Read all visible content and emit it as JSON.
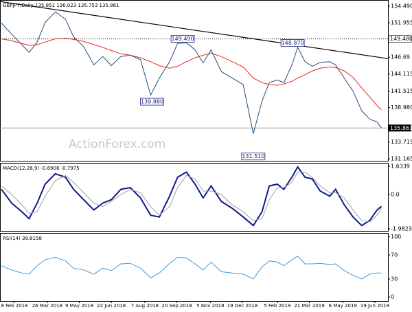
{
  "chart_data": [
    {
      "type": "line",
      "title": "GBPJPY,Daily  135.851 136.023 135.753 135.861",
      "watermark": "ActionForex.com",
      "x": [
        "2018-01-22",
        "2018-02-05",
        "2018-02-19",
        "2018-03-01",
        "2018-03-12",
        "2018-03-23",
        "2018-04-06",
        "2018-04-20",
        "2018-05-01",
        "2018-05-15",
        "2018-05-29",
        "2018-06-10",
        "2018-06-22",
        "2018-07-05",
        "2018-07-18",
        "2018-08-01",
        "2018-08-15",
        "2018-08-27",
        "2018-09-10",
        "2018-09-21",
        "2018-10-03",
        "2018-10-15",
        "2018-10-26",
        "2018-11-06",
        "2018-11-20",
        "2018-12-05",
        "2018-12-20",
        "2019-01-03",
        "2019-01-15",
        "2019-01-25",
        "2019-02-05",
        "2019-02-14",
        "2019-02-25",
        "2019-03-05",
        "2019-03-15",
        "2019-03-25",
        "2019-04-05",
        "2019-04-18",
        "2019-04-26",
        "2019-05-08",
        "2019-05-20",
        "2019-06-01",
        "2019-06-12",
        "2019-06-22",
        "2019-06-28"
      ],
      "series": [
        {
          "name": "GBPJPY",
          "color": "#1f4e79",
          "values": [
            151.9,
            150.2,
            148.6,
            147.4,
            149.0,
            152.0,
            153.6,
            152.5,
            149.8,
            148.3,
            145.5,
            146.8,
            145.4,
            146.8,
            147.0,
            146.3,
            140.9,
            143.5,
            146.0,
            148.8,
            148.9,
            147.8,
            145.8,
            147.8,
            144.5,
            143.5,
            142.5,
            135.0,
            140.0,
            142.8,
            143.2,
            142.8,
            145.5,
            148.2,
            146.0,
            145.3,
            145.9,
            146.0,
            145.5,
            143.5,
            141.5,
            138.5,
            137.2,
            136.8,
            135.86
          ]
        },
        {
          "name": "MA",
          "color": "#e8231c",
          "values": [
            149.5,
            149.2,
            148.8,
            148.5,
            148.6,
            149.0,
            149.5,
            149.6,
            149.4,
            149.1,
            148.6,
            148.2,
            147.7,
            147.2,
            147.0,
            146.6,
            146.0,
            145.4,
            145.0,
            145.3,
            146.0,
            146.6,
            147.0,
            147.3,
            146.8,
            146.0,
            145.2,
            143.5,
            142.8,
            142.5,
            142.4,
            142.6,
            143.0,
            143.5,
            144.0,
            144.6,
            145.0,
            145.2,
            145.1,
            144.6,
            143.6,
            142.0,
            140.6,
            139.3,
            138.6
          ]
        }
      ],
      "trendline": {
        "x": [
          "2018-01-20",
          "2019-07-07"
        ],
        "values": [
          155.2,
          146.47
        ],
        "color": "#000000"
      },
      "level": {
        "value": 149.48,
        "label": "149.480"
      },
      "last": {
        "value": 135.861,
        "label": "135.861"
      },
      "annotations": [
        {
          "text": "139.880",
          "x": "2018-08-17",
          "value": 139.88
        },
        {
          "text": "149.490",
          "x": "2018-09-28",
          "value": 149.49
        },
        {
          "text": "148.870",
          "x": "2019-02-26",
          "value": 148.87
        },
        {
          "text": "131.510",
          "x": "2019-01-03",
          "value": 131.51
        }
      ],
      "xlim": [
        "2018-01-20",
        "2019-07-07"
      ],
      "ylim": [
        130.85,
        155.43
      ],
      "yticks": [
        {
          "value": 154.49,
          "label": "154.490"
        },
        151.955,
        146.69,
        144.115,
        141.515,
        {
          "value": 138.98,
          "label": "138.980"
        },
        133.715,
        131.165
      ]
    },
    {
      "type": "line",
      "title": "MACD(12,26,9) -0.6908 -0.7975",
      "x": [
        "2018-01-22",
        "2018-02-05",
        "2018-02-19",
        "2018-03-01",
        "2018-03-12",
        "2018-03-23",
        "2018-04-06",
        "2018-04-20",
        "2018-05-01",
        "2018-05-15",
        "2018-05-29",
        "2018-06-10",
        "2018-06-22",
        "2018-07-05",
        "2018-07-18",
        "2018-08-01",
        "2018-08-15",
        "2018-08-27",
        "2018-09-10",
        "2018-09-21",
        "2018-10-03",
        "2018-10-15",
        "2018-10-26",
        "2018-11-06",
        "2018-11-20",
        "2018-12-05",
        "2018-12-20",
        "2019-01-03",
        "2019-01-15",
        "2019-01-25",
        "2019-02-05",
        "2019-02-14",
        "2019-02-25",
        "2019-03-05",
        "2019-03-15",
        "2019-03-25",
        "2019-04-05",
        "2019-04-18",
        "2019-04-26",
        "2019-05-08",
        "2019-05-20",
        "2019-06-01",
        "2019-06-12",
        "2019-06-22",
        "2019-06-28"
      ],
      "series": [
        {
          "name": "MACD",
          "color": "#0a1a8c",
          "width": 2,
          "values": [
            0.3,
            -0.5,
            -1.0,
            -1.4,
            -0.5,
            0.6,
            1.2,
            1.0,
            0.3,
            -0.3,
            -0.9,
            -0.5,
            -0.3,
            0.3,
            0.4,
            -0.2,
            -1.2,
            -1.3,
            -0.1,
            1.0,
            1.3,
            0.6,
            -0.2,
            0.5,
            -0.4,
            -0.8,
            -1.3,
            -1.8,
            -1.0,
            0.5,
            0.6,
            0.3,
            1.0,
            1.6,
            1.0,
            0.9,
            0.2,
            -0.1,
            0.3,
            -0.6,
            -1.3,
            -1.8,
            -1.5,
            -0.9,
            -0.69
          ]
        },
        {
          "name": "Signal",
          "color": "#a0a0a0",
          "width": 1,
          "values": [
            0.5,
            0.0,
            -0.6,
            -1.1,
            -1.0,
            -0.1,
            0.8,
            1.1,
            0.7,
            0.1,
            -0.5,
            -0.7,
            -0.4,
            0.0,
            0.3,
            0.1,
            -0.7,
            -1.2,
            -0.7,
            0.4,
            1.1,
            0.9,
            0.2,
            0.2,
            0.0,
            -0.6,
            -1.0,
            -1.5,
            -1.4,
            -0.3,
            0.4,
            0.4,
            0.7,
            1.3,
            1.3,
            1.0,
            0.5,
            0.1,
            0.1,
            -0.2,
            -0.9,
            -1.5,
            -1.6,
            -1.2,
            -0.8
          ]
        }
      ],
      "xlim": [
        "2018-01-20",
        "2019-07-07"
      ],
      "ylim": [
        -2.11,
        1.833
      ],
      "yticks": [
        1.6339,
        {
          "value": 0,
          "label": "0.0"
        },
        -1.9823
      ]
    },
    {
      "type": "line",
      "title": "RSI(14) 39.8158",
      "x": [
        "2018-01-22",
        "2018-02-05",
        "2018-02-19",
        "2018-03-01",
        "2018-03-12",
        "2018-03-23",
        "2018-04-06",
        "2018-04-20",
        "2018-05-01",
        "2018-05-15",
        "2018-05-29",
        "2018-06-10",
        "2018-06-22",
        "2018-07-05",
        "2018-07-18",
        "2018-08-01",
        "2018-08-15",
        "2018-08-27",
        "2018-09-10",
        "2018-09-21",
        "2018-10-03",
        "2018-10-15",
        "2018-10-26",
        "2018-11-06",
        "2018-11-20",
        "2018-12-05",
        "2018-12-20",
        "2019-01-03",
        "2019-01-15",
        "2019-01-25",
        "2019-02-05",
        "2019-02-14",
        "2019-02-25",
        "2019-03-05",
        "2019-03-15",
        "2019-03-25",
        "2019-04-05",
        "2019-04-18",
        "2019-04-26",
        "2019-05-08",
        "2019-05-20",
        "2019-06-01",
        "2019-06-12",
        "2019-06-22",
        "2019-06-28"
      ],
      "series": [
        {
          "name": "RSI",
          "color": "#3d9be0",
          "width": 1,
          "values": [
            52,
            45,
            40,
            38,
            52,
            62,
            66,
            60,
            48,
            45,
            38,
            48,
            44,
            55,
            56,
            48,
            32,
            40,
            56,
            66,
            65,
            55,
            45,
            58,
            42,
            40,
            38,
            30,
            50,
            60,
            58,
            52,
            62,
            68,
            55,
            55,
            56,
            54,
            55,
            44,
            36,
            30,
            38,
            40,
            39.8
          ]
        }
      ],
      "xlim": [
        "2018-01-20",
        "2019-07-07"
      ],
      "ylim": [
        -6.7,
        106.5
      ],
      "yticks": [
        100,
        70,
        30,
        0
      ],
      "xticks": [
        {
          "value": "2018-02-08",
          "label": "8 Feb 2018"
        },
        {
          "value": "2018-03-26",
          "label": "26 Mar 2018"
        },
        {
          "value": "2018-05-09",
          "label": "9 May 2018"
        },
        {
          "value": "2018-06-22",
          "label": "22 Jun 2018"
        },
        {
          "value": "2018-08-07",
          "label": "7 Aug 2018"
        },
        {
          "value": "2018-09-20",
          "label": "20 Sep 2018"
        },
        {
          "value": "2018-11-05",
          "label": "5 Nov 2018"
        },
        {
          "value": "2018-12-19",
          "label": "19 Dec 2018"
        },
        {
          "value": "2019-02-05",
          "label": "5 Feb 2019"
        },
        {
          "value": "2019-03-21",
          "label": "21 Mar 2019"
        },
        {
          "value": "2019-05-06",
          "label": "6 May 2019"
        },
        {
          "value": "2019-06-19",
          "label": "19 Jun 2019"
        }
      ]
    }
  ]
}
